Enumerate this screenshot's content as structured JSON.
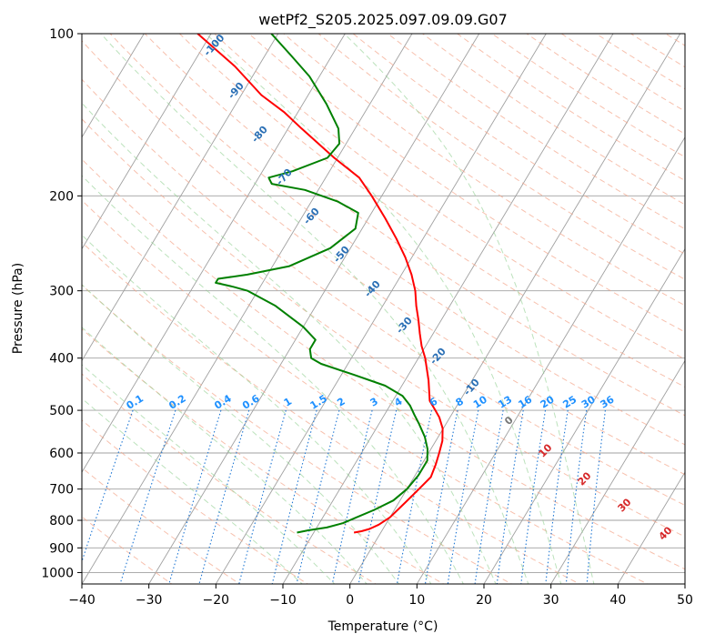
{
  "chart_data": {
    "type": "line",
    "subtype": "skew-t log-p",
    "title": "wetPf2_S205.2025.097.09.09.G07",
    "xlabel": "Temperature (°C)",
    "ylabel": "Pressure (hPa)",
    "xlim": [
      -40,
      50
    ],
    "ylim": [
      1050,
      100
    ],
    "yscale": "log",
    "x_ticks": [
      -40,
      -30,
      -20,
      -10,
      0,
      10,
      20,
      30,
      40,
      50
    ],
    "y_ticks": [
      100,
      200,
      300,
      400,
      500,
      600,
      700,
      800,
      900,
      1000
    ],
    "grid": true,
    "series": [
      {
        "color": "#ff0000",
        "points": [
          [
            843,
            -4.0
          ],
          [
            838,
            -3.0
          ],
          [
            830,
            -2.0
          ],
          [
            815,
            -1.0
          ],
          [
            790,
            0.0
          ],
          [
            740,
            1.0
          ],
          [
            700,
            1.8
          ],
          [
            665,
            2.5
          ],
          [
            630,
            2.1
          ],
          [
            600,
            1.6
          ],
          [
            570,
            1.0
          ],
          [
            540,
            -0.1
          ],
          [
            515,
            -1.6
          ],
          [
            500,
            -2.8
          ],
          [
            480,
            -4.5
          ],
          [
            440,
            -6.5
          ],
          [
            400,
            -9.0
          ],
          [
            380,
            -10.6
          ],
          [
            360,
            -12.0
          ],
          [
            340,
            -13.4
          ],
          [
            320,
            -15.0
          ],
          [
            300,
            -16.5
          ],
          [
            280,
            -18.5
          ],
          [
            260,
            -21.0
          ],
          [
            240,
            -24.0
          ],
          [
            220,
            -27.5
          ],
          [
            200,
            -31.5
          ],
          [
            185,
            -35.0
          ],
          [
            170,
            -40.5
          ],
          [
            150,
            -48.0
          ],
          [
            140,
            -52.0
          ],
          [
            130,
            -57.0
          ],
          [
            115,
            -63.5
          ],
          [
            100,
            -72.0
          ]
        ]
      },
      {
        "color": "#008000",
        "points": [
          [
            843,
            -12.5
          ],
          [
            835,
            -11.0
          ],
          [
            825,
            -8.5
          ],
          [
            810,
            -6.5
          ],
          [
            790,
            -5.0
          ],
          [
            765,
            -3.0
          ],
          [
            735,
            -1.0
          ],
          [
            700,
            0.0
          ],
          [
            660,
            0.5
          ],
          [
            620,
            0.5
          ],
          [
            590,
            -0.5
          ],
          [
            560,
            -2.0
          ],
          [
            530,
            -4.0
          ],
          [
            510,
            -5.5
          ],
          [
            490,
            -7.0
          ],
          [
            470,
            -9.0
          ],
          [
            450,
            -12.5
          ],
          [
            430,
            -18.0
          ],
          [
            410,
            -24.0
          ],
          [
            400,
            -26.0
          ],
          [
            385,
            -27.0
          ],
          [
            370,
            -27.0
          ],
          [
            350,
            -30.0
          ],
          [
            320,
            -36.0
          ],
          [
            300,
            -41.5
          ],
          [
            295,
            -44.0
          ],
          [
            290,
            -47.0
          ],
          [
            285,
            -47.0
          ],
          [
            280,
            -43.0
          ],
          [
            270,
            -37.5
          ],
          [
            250,
            -33.0
          ],
          [
            230,
            -31.0
          ],
          [
            215,
            -32.0
          ],
          [
            205,
            -36.0
          ],
          [
            195,
            -42.0
          ],
          [
            190,
            -47.5
          ],
          [
            185,
            -48.5
          ],
          [
            180,
            -45.5
          ],
          [
            170,
            -41.5
          ],
          [
            160,
            -41.0
          ],
          [
            150,
            -42.5
          ],
          [
            135,
            -46.5
          ],
          [
            120,
            -51.5
          ],
          [
            110,
            -56.0
          ],
          [
            100,
            -61.0
          ]
        ]
      }
    ],
    "dry_adiabat_labels": [
      "-100",
      "-90",
      "-80",
      "-70",
      "-60",
      "-50",
      "-40",
      "-30",
      "-20",
      "-10"
    ],
    "mixing_ratio_labels": [
      "0.1",
      "0.2",
      "0.4",
      "0.6",
      "1",
      "1.5",
      "2",
      "3",
      "4",
      "6",
      "8",
      "10",
      "13",
      "16",
      "20",
      "25",
      "30",
      "36"
    ],
    "moist_adiabat_labels": [
      "0",
      "10",
      "20",
      "30",
      "40"
    ]
  }
}
